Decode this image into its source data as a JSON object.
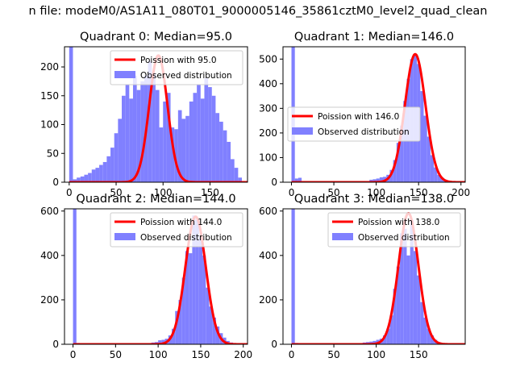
{
  "figure": {
    "suptitle": "n file: modeM0/AS1A11_080T01_9000005146_35861cztM0_level2_quad_clean"
  },
  "colors": {
    "hist": "#8080ff",
    "poisson": "#ff0000",
    "axes": "#000000"
  },
  "chart_data": [
    {
      "type": "bar",
      "title": "Quadrant 0: Median=95.0",
      "median": 95.0,
      "xlim": [
        -5,
        190
      ],
      "ylim": [
        0,
        235
      ],
      "xticks": [
        "0",
        "50",
        "100",
        "150"
      ],
      "xtick_values": [
        0,
        50,
        100,
        150
      ],
      "yticks": [
        "0",
        "50",
        "100",
        "150",
        "200"
      ],
      "ytick_values": [
        0,
        50,
        100,
        150,
        200
      ],
      "bin_width": 4.0,
      "bin_starts": [
        0,
        4,
        8,
        12,
        16,
        20,
        24,
        28,
        32,
        36,
        40,
        44,
        48,
        52,
        56,
        60,
        64,
        68,
        72,
        76,
        80,
        84,
        88,
        92,
        96,
        100,
        104,
        108,
        112,
        116,
        120,
        124,
        128,
        132,
        136,
        140,
        144,
        148,
        152,
        156,
        160,
        164,
        168,
        172,
        176,
        180
      ],
      "hist_values": [
        235,
        5,
        8,
        10,
        13,
        16,
        22,
        25,
        30,
        35,
        45,
        60,
        85,
        110,
        150,
        170,
        145,
        185,
        160,
        175,
        185,
        210,
        190,
        160,
        95,
        140,
        155,
        95,
        92,
        125,
        110,
        115,
        140,
        155,
        170,
        145,
        180,
        165,
        150,
        120,
        105,
        90,
        70,
        40,
        25,
        8
      ],
      "poisson_peak": 220,
      "legend": {
        "poisson_label": "Poission with 95.0",
        "observed_label": "Observed distribution",
        "position": "upper right"
      }
    },
    {
      "type": "bar",
      "title": "Quadrant 1: Median=146.0",
      "median": 146.0,
      "xlim": [
        -10,
        205
      ],
      "ylim": [
        0,
        550
      ],
      "xticks": [
        "0",
        "50",
        "100",
        "150",
        "200"
      ],
      "xtick_values": [
        0,
        50,
        100,
        150,
        200
      ],
      "yticks": [
        "0",
        "100",
        "200",
        "300",
        "400",
        "500"
      ],
      "ytick_values": [
        0,
        100,
        200,
        300,
        400,
        500
      ],
      "bin_width": 4.0,
      "bin_starts": [
        0,
        4,
        8,
        92,
        96,
        100,
        104,
        108,
        112,
        116,
        120,
        124,
        128,
        132,
        136,
        140,
        144,
        148,
        152,
        156,
        160,
        164,
        168,
        172,
        176,
        180,
        184,
        188,
        192
      ],
      "hist_values": [
        550,
        15,
        18,
        10,
        12,
        15,
        20,
        22,
        30,
        50,
        90,
        160,
        230,
        330,
        420,
        500,
        520,
        480,
        370,
        270,
        185,
        110,
        60,
        30,
        18,
        10,
        6,
        4,
        2
      ],
      "poisson_peak": 520,
      "legend": {
        "poisson_label": "Poission with 146.0",
        "observed_label": "Observed distribution",
        "position": "center left"
      }
    },
    {
      "type": "bar",
      "title": "Quadrant 2: Median=144.0",
      "median": 144.0,
      "xlim": [
        -10,
        205
      ],
      "ylim": [
        0,
        610
      ],
      "xticks": [
        "0",
        "50",
        "100",
        "150",
        "200"
      ],
      "xtick_values": [
        0,
        50,
        100,
        150,
        200
      ],
      "yticks": [
        "0",
        "200",
        "400",
        "600"
      ],
      "ytick_values": [
        0,
        200,
        400,
        600
      ],
      "bin_width": 4.0,
      "bin_starts": [
        0,
        4,
        92,
        96,
        100,
        104,
        108,
        112,
        116,
        120,
        124,
        128,
        132,
        136,
        140,
        144,
        148,
        152,
        156,
        160,
        164,
        168,
        172,
        176,
        180,
        184,
        188,
        192
      ],
      "hist_values": [
        610,
        6,
        8,
        10,
        18,
        20,
        25,
        40,
        70,
        150,
        200,
        300,
        420,
        410,
        580,
        560,
        480,
        400,
        255,
        170,
        120,
        80,
        50,
        30,
        15,
        8,
        4,
        2
      ],
      "poisson_peak": 575,
      "legend": {
        "poisson_label": "Poission with 144.0",
        "observed_label": "Observed distribution",
        "position": "upper right"
      }
    },
    {
      "type": "bar",
      "title": "Quadrant 3: Median=138.0",
      "median": 138.0,
      "xlim": [
        -10,
        205
      ],
      "ylim": [
        0,
        610
      ],
      "xticks": [
        "0",
        "50",
        "100",
        "150"
      ],
      "xtick_values": [
        0,
        50,
        100,
        150
      ],
      "yticks": [
        "0",
        "200",
        "400",
        "600"
      ],
      "ytick_values": [
        0,
        200,
        400,
        600
      ],
      "bin_width": 4.0,
      "bin_starts": [
        0,
        4,
        84,
        88,
        92,
        96,
        100,
        104,
        108,
        112,
        116,
        120,
        124,
        128,
        132,
        136,
        140,
        144,
        148,
        152,
        156,
        160,
        164,
        168,
        172,
        176,
        180
      ],
      "hist_values": [
        610,
        6,
        8,
        10,
        12,
        15,
        20,
        25,
        40,
        70,
        130,
        250,
        350,
        500,
        520,
        400,
        560,
        420,
        310,
        190,
        120,
        70,
        40,
        20,
        10,
        5,
        2
      ],
      "poisson_peak": 590,
      "legend": {
        "poisson_label": "Poission with 138.0",
        "observed_label": "Observed distribution",
        "position": "upper right"
      }
    }
  ]
}
